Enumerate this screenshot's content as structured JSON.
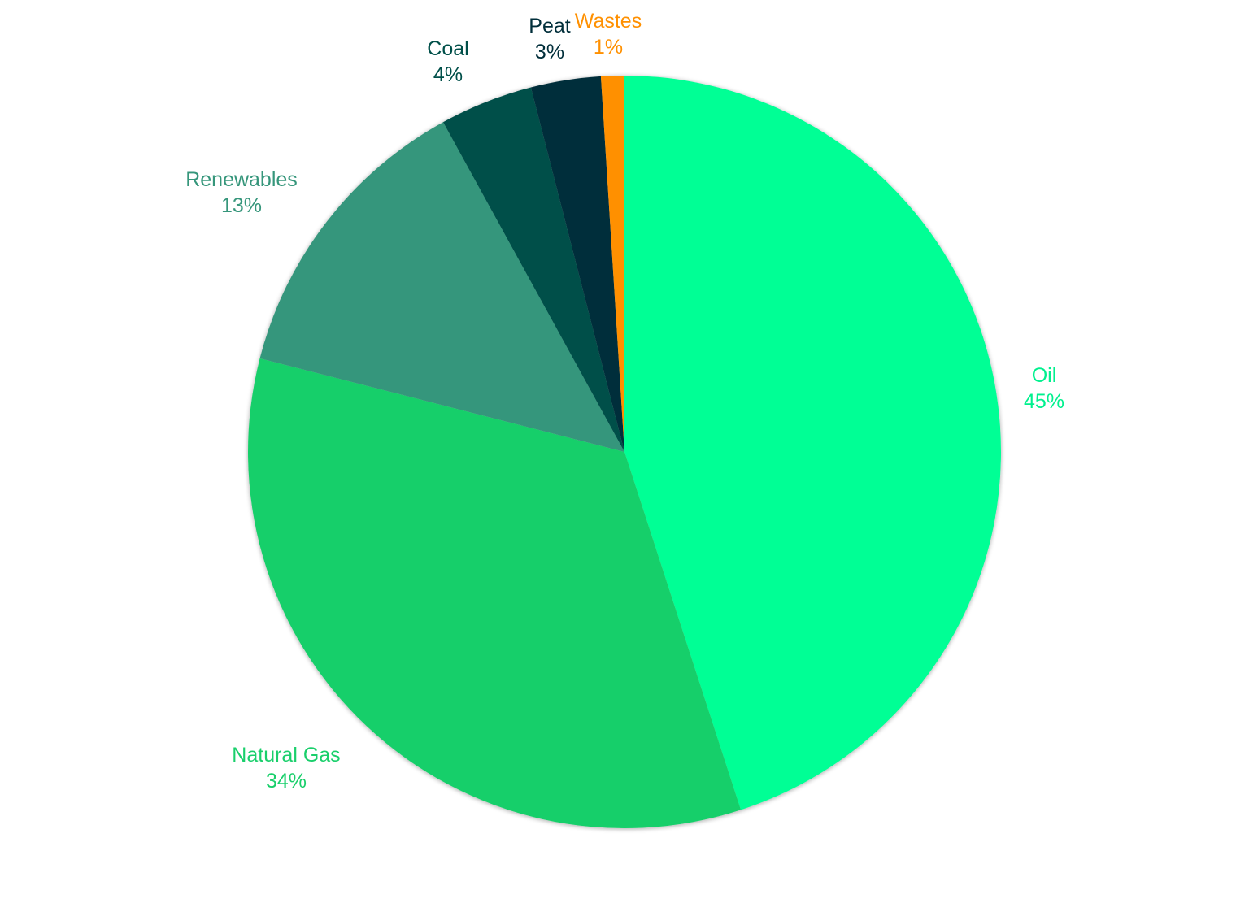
{
  "chart_data": {
    "type": "pie",
    "start_angle_deg": 0,
    "direction": "clockwise",
    "slices": [
      {
        "label": "Oil",
        "value": 45,
        "value_label": "45%",
        "color": "#00FF95"
      },
      {
        "label": "Natural Gas",
        "value": 34,
        "value_label": "34%",
        "color": "#19CF6B"
      },
      {
        "label": "Renewables",
        "value": 13,
        "value_label": "13%",
        "color": "#36967B"
      },
      {
        "label": "Coal",
        "value": 4,
        "value_label": "4%",
        "color": "#004F49"
      },
      {
        "label": "Peat",
        "value": 3,
        "value_label": "3%",
        "color": "#002E3A"
      },
      {
        "label": "Wastes",
        "value": 1,
        "value_label": "1%",
        "color": "#FF9000"
      }
    ],
    "legend": "none",
    "data_labels": "outside"
  }
}
